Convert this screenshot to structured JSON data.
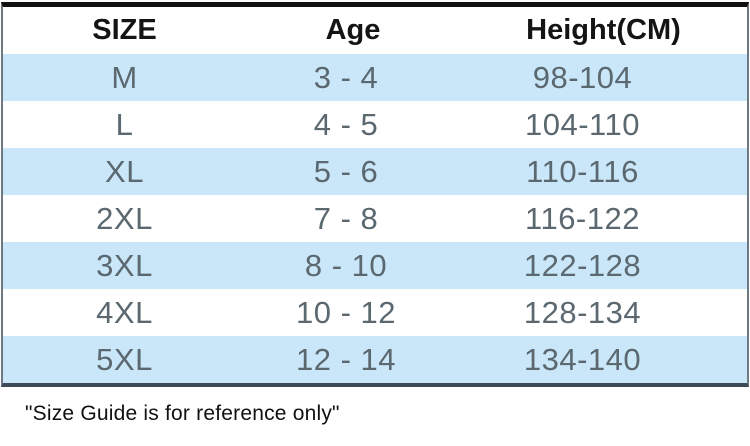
{
  "table": {
    "columns": [
      "SIZE",
      "Age",
      "Height(CM)"
    ],
    "rows": [
      [
        "M",
        "3 - 4",
        "98-104"
      ],
      [
        "L",
        "4 - 5",
        "104-110"
      ],
      [
        "XL",
        "5 - 6",
        "110-116"
      ],
      [
        "2XL",
        "7 - 8",
        "116-122"
      ],
      [
        "3XL",
        "8 - 10",
        "122-128"
      ],
      [
        "4XL",
        "10 - 12",
        "128-134"
      ],
      [
        "5XL",
        "12 - 14",
        "134-140"
      ]
    ]
  },
  "footer": {
    "note": "\"Size Guide is for reference only\""
  },
  "colors": {
    "row_alt": "#c9e7f9",
    "data_text": "#5c6870",
    "header_text": "#141414",
    "border_top": "#101010",
    "border_side": "#6e7881",
    "border_bottom": "#3d4954",
    "footer_text": "#111111"
  },
  "chart_data": {
    "type": "table",
    "columns": [
      "SIZE",
      "Age",
      "Height(CM)"
    ],
    "rows": [
      [
        "M",
        "3 - 4",
        "98-104"
      ],
      [
        "L",
        "4 - 5",
        "104-110"
      ],
      [
        "XL",
        "5 - 6",
        "110-116"
      ],
      [
        "2XL",
        "7 - 8",
        "116-122"
      ],
      [
        "3XL",
        "8 - 10",
        "122-128"
      ],
      [
        "4XL",
        "10 - 12",
        "128-134"
      ],
      [
        "5XL",
        "12 - 14",
        "134-140"
      ]
    ],
    "footnote": "\"Size Guide is for reference only\"",
    "layout_hints": {
      "striped": true,
      "stripe_color": "#c9e7f9",
      "first_data_row_striped": true,
      "column_alignment": "center"
    }
  }
}
